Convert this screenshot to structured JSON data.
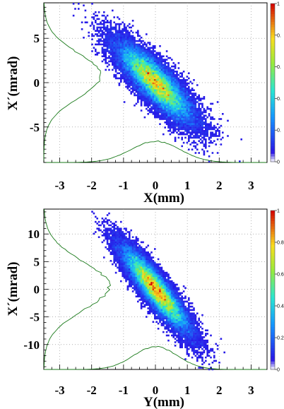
{
  "chart_data": [
    {
      "type": "heatmap",
      "xlabel": "X(mm)",
      "ylabel": "X´(mrad)",
      "xlim": [
        -3.5,
        3.5
      ],
      "ylim": [
        -9,
        9
      ],
      "x_ticks": [
        "-3",
        "-2",
        "-1",
        "0",
        "1",
        "2",
        "3"
      ],
      "x_tick_values": [
        -3,
        -2,
        -1,
        0,
        1,
        2,
        3
      ],
      "y_ticks": [
        "5",
        "0",
        "-5"
      ],
      "y_tick_values": [
        5,
        0,
        -5
      ],
      "grid": true,
      "distribution": {
        "center": [
          0,
          0
        ],
        "sigma_x": 0.62,
        "sigma_y": 2.3,
        "correlation": -0.84
      },
      "colorbar": {
        "range": [
          0,
          1
        ],
        "labels": [
          "1",
          "0.",
          "0.",
          "0.",
          "0.",
          "0"
        ],
        "values": [
          1,
          0.8,
          0.6,
          0.4,
          0.2,
          0
        ]
      },
      "x_projection_peak": 0,
      "y_projection_peak": 0.8
    },
    {
      "type": "heatmap",
      "xlabel": "Y(mm)",
      "ylabel": "X´(mrad)",
      "xlim": [
        -3.5,
        3.5
      ],
      "ylim": [
        -14.5,
        14.5
      ],
      "x_ticks": [
        "-3",
        "-2",
        "-1",
        "0",
        "1",
        "2",
        "3"
      ],
      "x_tick_values": [
        -3,
        -2,
        -1,
        0,
        1,
        2,
        3
      ],
      "y_ticks": [
        "10",
        "5",
        "0",
        "-5",
        "-10"
      ],
      "y_tick_values": [
        10,
        5,
        0,
        -5,
        -10
      ],
      "grid": true,
      "distribution": {
        "center": [
          0,
          0
        ],
        "sigma_x": 0.55,
        "sigma_y": 4.0,
        "correlation": -0.9
      },
      "colorbar": {
        "range": [
          0,
          1
        ],
        "labels": [
          "1",
          "0.8",
          "0.6",
          "0.4",
          "0.2",
          "0"
        ],
        "values": [
          1,
          0.8,
          0.6,
          0.4,
          0.2,
          0
        ]
      },
      "x_projection_peak": 0,
      "y_projection_peak": 0.6
    }
  ]
}
